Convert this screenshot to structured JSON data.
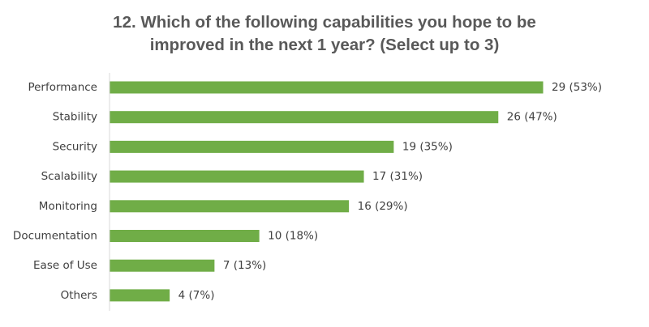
{
  "chart_data": {
    "type": "bar",
    "orientation": "horizontal",
    "title_lines": [
      "12. Which of the following capabilities you hope to be",
      "improved in the next 1 year? (Select up to 3)"
    ],
    "categories": [
      "Performance",
      "Stability",
      "Security",
      "Scalability",
      "Monitoring",
      "Documentation",
      "Ease of Use",
      "Others"
    ],
    "values": [
      29,
      26,
      19,
      17,
      16,
      10,
      7,
      4
    ],
    "percentages": [
      "53%",
      "47%",
      "35%",
      "31%",
      "29%",
      "18%",
      "13%",
      "7%"
    ],
    "data_labels": [
      "29 (53%)",
      "26 (47%)",
      "19 (35%)",
      "17 (31%)",
      "16 (29%)",
      "10 (18%)",
      "7 (13%)",
      "4 (7%)"
    ],
    "xlabel": "",
    "ylabel": "",
    "xlim": [
      0,
      29
    ],
    "grid": false,
    "legend": "none",
    "bar_color": "#70AD47"
  }
}
